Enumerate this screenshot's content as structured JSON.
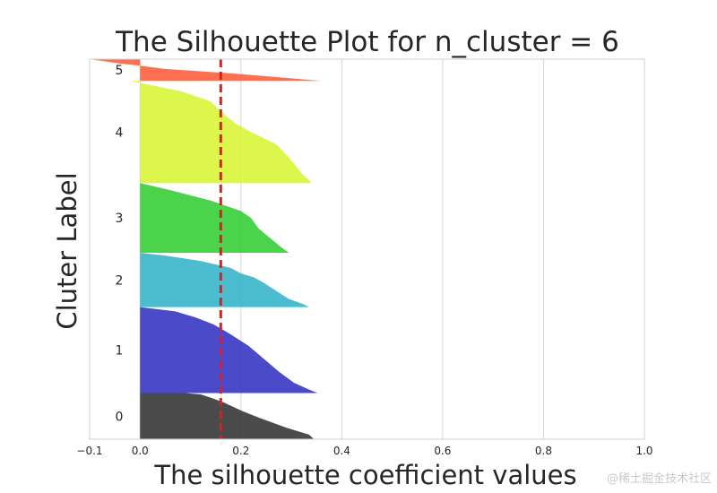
{
  "chart_data": {
    "type": "area",
    "title": "The Silhouette Plot for n_cluster = 6",
    "xlabel": "The silhouette coefficient values",
    "ylabel": "Cluter Label",
    "xlim": [
      -0.1,
      1.0
    ],
    "ylim": [
      0,
      4200
    ],
    "xticks": [
      -0.1,
      0.0,
      0.2,
      0.4,
      0.6,
      0.8,
      1.0
    ],
    "xtick_labels": [
      "−0.1",
      "0.0",
      "0.2",
      "0.4",
      "0.6",
      "0.8",
      "1.0"
    ],
    "grid": true,
    "reference_line": {
      "x": 0.16,
      "color": "#e41a1c",
      "style": "dashed"
    },
    "clusters": [
      {
        "label": "0",
        "y_lower": 0,
        "y_upper": 510,
        "color": "#2b2b2b",
        "profile": [
          [
            0,
            0.345
          ],
          [
            0.1,
            0.335
          ],
          [
            0.25,
            0.29
          ],
          [
            0.45,
            0.24
          ],
          [
            0.6,
            0.205
          ],
          [
            0.7,
            0.185
          ],
          [
            0.8,
            0.165
          ],
          [
            0.9,
            0.14
          ],
          [
            0.97,
            0.12
          ],
          [
            1,
            0.09
          ]
        ]
      },
      {
        "label": "1",
        "y_lower": 510,
        "y_upper": 1460,
        "color": "#2b2bbf",
        "profile": [
          [
            0,
            0.352
          ],
          [
            0.04,
            0.335
          ],
          [
            0.12,
            0.305
          ],
          [
            0.25,
            0.275
          ],
          [
            0.4,
            0.245
          ],
          [
            0.55,
            0.215
          ],
          [
            0.7,
            0.175
          ],
          [
            0.8,
            0.145
          ],
          [
            0.88,
            0.11
          ],
          [
            0.95,
            0.07
          ],
          [
            1,
            0.0
          ]
        ]
      },
      {
        "label": "2",
        "y_lower": 1460,
        "y_upper": 2060,
        "color": "#2bb2c7",
        "profile": [
          [
            0,
            0.335
          ],
          [
            0.05,
            0.325
          ],
          [
            0.15,
            0.295
          ],
          [
            0.3,
            0.27
          ],
          [
            0.45,
            0.245
          ],
          [
            0.55,
            0.225
          ],
          [
            0.62,
            0.2
          ],
          [
            0.72,
            0.18
          ],
          [
            0.85,
            0.12
          ],
          [
            0.95,
            0.05
          ],
          [
            1,
            0.0
          ]
        ]
      },
      {
        "label": "3",
        "y_lower": 2060,
        "y_upper": 2830,
        "color": "#2bcc2b",
        "profile": [
          [
            0,
            0.295
          ],
          [
            0.08,
            0.28
          ],
          [
            0.2,
            0.26
          ],
          [
            0.35,
            0.235
          ],
          [
            0.5,
            0.22
          ],
          [
            0.6,
            0.2
          ],
          [
            0.75,
            0.14
          ],
          [
            0.9,
            0.06
          ],
          [
            1,
            0.0
          ]
        ]
      },
      {
        "label": "4",
        "y_lower": 2830,
        "y_upper": 3960,
        "color": "#d7f52b",
        "profile": [
          [
            0,
            0.34
          ],
          [
            0.1,
            0.32
          ],
          [
            0.25,
            0.295
          ],
          [
            0.38,
            0.27
          ],
          [
            0.5,
            0.22
          ],
          [
            0.58,
            0.19
          ],
          [
            0.7,
            0.16
          ],
          [
            0.8,
            0.14
          ],
          [
            0.9,
            0.08
          ],
          [
            0.96,
            0.02
          ],
          [
            1,
            -0.02
          ]
        ]
      },
      {
        "label": "5",
        "y_lower": 3960,
        "y_upper": 4200,
        "color": "#ff5733",
        "profile": [
          [
            0,
            0.36
          ],
          [
            0.35,
            0.18
          ],
          [
            0.55,
            0.05
          ],
          [
            0.7,
            0.0
          ],
          [
            0.8,
            -0.04
          ],
          [
            1,
            -0.1
          ]
        ]
      }
    ]
  },
  "watermark": "@稀土掘金技术社区"
}
